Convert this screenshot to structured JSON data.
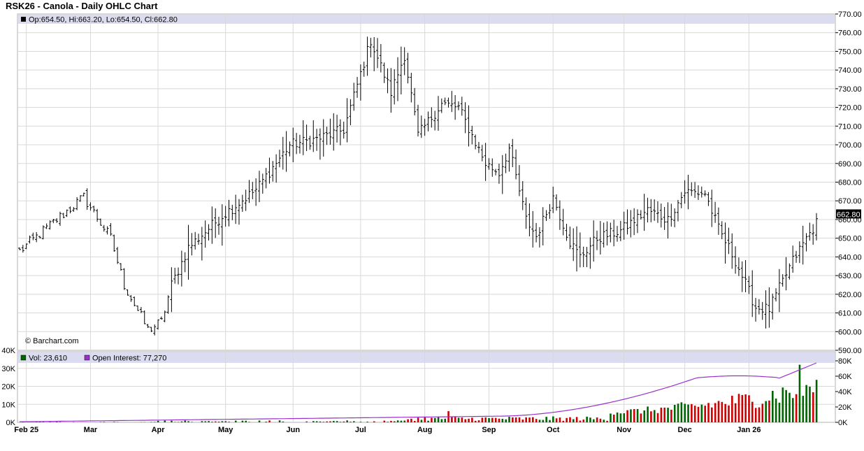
{
  "chart_data": {
    "type": "ohlc",
    "title": "RSK26 - Canola - Daily OHLC Chart",
    "watermark": "© Barchart.com",
    "price_panel": {
      "legend": "Op:654.50, Hi:663.20, Lo:654.50, Cl:662.80",
      "last_value": "662.80",
      "ylim": [
        590,
        770
      ],
      "yticks": [
        "590.00",
        "600.00",
        "610.00",
        "620.00",
        "630.00",
        "640.00",
        "650.00",
        "660.00",
        "670.00",
        "680.00",
        "690.00",
        "700.00",
        "710.00",
        "720.00",
        "730.00",
        "740.00",
        "750.00",
        "760.00",
        "770.00"
      ],
      "keypoints": [
        {
          "i": 0,
          "v": 643
        },
        {
          "i": 13,
          "v": 663
        },
        {
          "i": 19,
          "v": 672
        },
        {
          "i": 27,
          "v": 650
        },
        {
          "i": 31,
          "v": 625
        },
        {
          "i": 38,
          "v": 601
        },
        {
          "i": 42,
          "v": 605
        },
        {
          "i": 45,
          "v": 625
        },
        {
          "i": 50,
          "v": 645
        },
        {
          "i": 60,
          "v": 662
        },
        {
          "i": 70,
          "v": 676
        },
        {
          "i": 80,
          "v": 700
        },
        {
          "i": 88,
          "v": 703
        },
        {
          "i": 96,
          "v": 708
        },
        {
          "i": 104,
          "v": 756
        },
        {
          "i": 110,
          "v": 728
        },
        {
          "i": 114,
          "v": 748
        },
        {
          "i": 118,
          "v": 705
        },
        {
          "i": 125,
          "v": 722
        },
        {
          "i": 130,
          "v": 720
        },
        {
          "i": 138,
          "v": 690
        },
        {
          "i": 142,
          "v": 685
        },
        {
          "i": 145,
          "v": 698
        },
        {
          "i": 150,
          "v": 660
        },
        {
          "i": 153,
          "v": 651
        },
        {
          "i": 158,
          "v": 672
        },
        {
          "i": 163,
          "v": 648
        },
        {
          "i": 166,
          "v": 640
        },
        {
          "i": 171,
          "v": 650
        },
        {
          "i": 178,
          "v": 654
        },
        {
          "i": 186,
          "v": 665
        },
        {
          "i": 192,
          "v": 660
        },
        {
          "i": 197,
          "v": 675
        },
        {
          "i": 203,
          "v": 674
        },
        {
          "i": 207,
          "v": 655
        },
        {
          "i": 212,
          "v": 638
        },
        {
          "i": 218,
          "v": 613
        },
        {
          "i": 222,
          "v": 612
        },
        {
          "i": 229,
          "v": 638
        },
        {
          "i": 233,
          "v": 650
        },
        {
          "i": 236,
          "v": 658
        }
      ]
    },
    "volume_panel": {
      "legend_vol": "Vol: 23,610",
      "legend_oi": "Open Interest: 77,270",
      "ylim_vol": [
        0,
        40000
      ],
      "yticks_vol": [
        "0K",
        "10K",
        "20K",
        "30K",
        "40K"
      ],
      "ylim_oi": [
        0,
        90000
      ],
      "yticks_oi": [
        "0K",
        "20K",
        "40K",
        "60K",
        "80K"
      ]
    },
    "x_axis": {
      "n_bars": 237,
      "labels": [
        {
          "text": "Feb 25",
          "i": 2
        },
        {
          "text": "Mar",
          "i": 21
        },
        {
          "text": "Apr",
          "i": 41
        },
        {
          "text": "May",
          "i": 61
        },
        {
          "text": "Jun",
          "i": 81
        },
        {
          "text": "Jul",
          "i": 101
        },
        {
          "text": "Aug",
          "i": 120
        },
        {
          "text": "Sep",
          "i": 139
        },
        {
          "text": "Oct",
          "i": 158
        },
        {
          "text": "Nov",
          "i": 179
        },
        {
          "text": "Dec",
          "i": 197
        },
        {
          "text": "Jan 26",
          "i": 216
        }
      ]
    },
    "colors": {
      "price_bar": "#000000",
      "vol_up": "#006400",
      "vol_down": "#cc0000",
      "open_interest": "#9932cc",
      "legend_band": "#dcdcf0",
      "grid": "#d8d8d8",
      "value_tag": "#000000"
    }
  }
}
